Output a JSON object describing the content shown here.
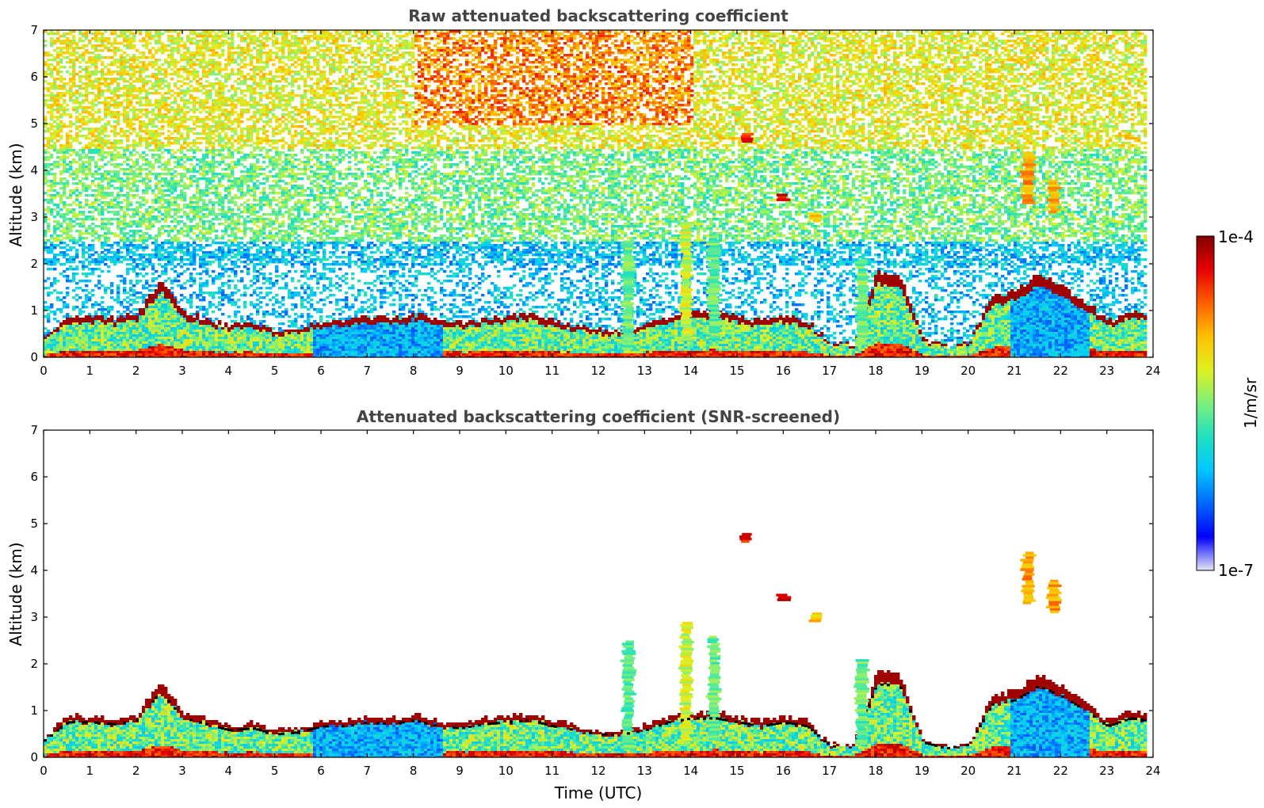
{
  "chart_data": [
    {
      "type": "heatmap",
      "title": "Raw attenuated backscattering coefficient",
      "xlabel": "",
      "ylabel": "Altitude (km)",
      "xlim": [
        0,
        24
      ],
      "ylim": [
        0,
        7
      ],
      "xticks": [
        "0",
        "1",
        "2",
        "3",
        "4",
        "5",
        "6",
        "7",
        "8",
        "9",
        "10",
        "11",
        "12",
        "13",
        "14",
        "15",
        "16",
        "17",
        "18",
        "19",
        "20",
        "21",
        "22",
        "23",
        "24"
      ],
      "yticks": [
        "0",
        "1",
        "2",
        "3",
        "4",
        "5",
        "6",
        "7"
      ],
      "data_end_hour": 23.8,
      "screened": false,
      "layer_top_km": [
        [
          0,
          0.45
        ],
        [
          0.5,
          0.9
        ],
        [
          1,
          0.9
        ],
        [
          1.5,
          0.85
        ],
        [
          2,
          0.95
        ],
        [
          2.5,
          1.65
        ],
        [
          3,
          1.0
        ],
        [
          3.5,
          0.85
        ],
        [
          4,
          0.7
        ],
        [
          4.5,
          0.75
        ],
        [
          5,
          0.6
        ],
        [
          5.5,
          0.65
        ],
        [
          6,
          0.8
        ],
        [
          6.5,
          0.8
        ],
        [
          7,
          0.9
        ],
        [
          7.5,
          0.85
        ],
        [
          8,
          0.95
        ],
        [
          8.5,
          0.8
        ],
        [
          9,
          0.75
        ],
        [
          9.5,
          0.85
        ],
        [
          10,
          0.9
        ],
        [
          10.5,
          0.95
        ],
        [
          11,
          0.8
        ],
        [
          11.5,
          0.7
        ],
        [
          12,
          0.6
        ],
        [
          12.5,
          0.6
        ],
        [
          13,
          0.7
        ],
        [
          13.5,
          0.9
        ],
        [
          14,
          1.0
        ],
        [
          14.5,
          1.0
        ],
        [
          15,
          0.9
        ],
        [
          15.5,
          0.8
        ],
        [
          16,
          0.9
        ],
        [
          16.5,
          0.8
        ],
        [
          17,
          0.3
        ],
        [
          17.5,
          0.3
        ],
        [
          18,
          1.85
        ],
        [
          18.5,
          1.8
        ],
        [
          19,
          0.4
        ],
        [
          19.5,
          0.25
        ],
        [
          20,
          0.35
        ],
        [
          20.5,
          1.35
        ],
        [
          21,
          1.45
        ],
        [
          21.5,
          1.8
        ],
        [
          22,
          1.55
        ],
        [
          22.5,
          1.2
        ],
        [
          23,
          0.8
        ],
        [
          23.5,
          1.0
        ],
        [
          23.8,
          0.95
        ]
      ],
      "plumes": [
        {
          "x": 12.65,
          "base_km": 0.2,
          "top_km": 2.5,
          "intensity": 0.55
        },
        {
          "x": 13.9,
          "base_km": 0.4,
          "top_km": 2.9,
          "intensity": 0.65
        },
        {
          "x": 14.5,
          "base_km": 0.4,
          "top_km": 2.6,
          "intensity": 0.55
        },
        {
          "x": 15.2,
          "base_km": 4.6,
          "top_km": 4.8,
          "intensity": 0.95
        },
        {
          "x": 16.0,
          "base_km": 3.35,
          "top_km": 3.5,
          "intensity": 1.0
        },
        {
          "x": 16.7,
          "base_km": 2.9,
          "top_km": 3.1,
          "intensity": 0.75
        },
        {
          "x": 17.7,
          "base_km": 0.3,
          "top_km": 2.1,
          "intensity": 0.55
        },
        {
          "x": 21.3,
          "base_km": 3.3,
          "top_km": 4.4,
          "intensity": 0.8
        },
        {
          "x": 21.85,
          "base_km": 3.1,
          "top_km": 3.8,
          "intensity": 0.8
        }
      ]
    },
    {
      "type": "heatmap",
      "title": "Attenuated backscattering coefficient (SNR-screened)",
      "xlabel": "Time (UTC)",
      "ylabel": "Altitude (km)",
      "xlim": [
        0,
        24
      ],
      "ylim": [
        0,
        7
      ],
      "xticks": [
        "0",
        "1",
        "2",
        "3",
        "4",
        "5",
        "6",
        "7",
        "8",
        "9",
        "10",
        "11",
        "12",
        "13",
        "14",
        "15",
        "16",
        "17",
        "18",
        "19",
        "20",
        "21",
        "22",
        "23",
        "24"
      ],
      "yticks": [
        "0",
        "1",
        "2",
        "3",
        "4",
        "5",
        "6",
        "7"
      ],
      "data_end_hour": 23.8,
      "screened": true
    }
  ],
  "colorbar": {
    "label": "1/m/sr",
    "max_label": "1e-4",
    "min_label": "1e-7",
    "scale": "log",
    "colors": [
      "#e6e6f7",
      "#0000ff",
      "#0066ff",
      "#00c8ff",
      "#20e0c0",
      "#7cf07c",
      "#e0f020",
      "#ffc000",
      "#ff6000",
      "#e80000",
      "#800000"
    ]
  }
}
